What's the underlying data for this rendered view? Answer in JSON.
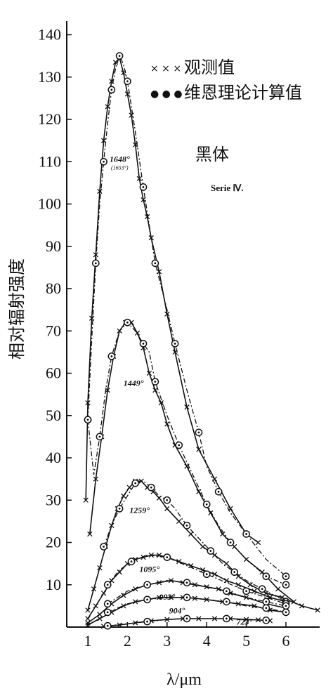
{
  "chart_data": {
    "type": "line",
    "title": "",
    "xlabel": "λ/μm",
    "ylabel": "相对辐射强度",
    "xlim": [
      0.5,
      6.8
    ],
    "ylim": [
      0,
      145
    ],
    "xticks": [
      1,
      2,
      3,
      4,
      5,
      6
    ],
    "yticks": [
      10,
      20,
      30,
      40,
      50,
      60,
      70,
      80,
      90,
      100,
      110,
      120,
      130,
      140
    ],
    "legend": {
      "placement": "top-right",
      "entries": [
        {
          "marker": "× × ×",
          "label": "观测值"
        },
        {
          "marker": "● ● ●",
          "label": "维恩理论计算值"
        }
      ]
    },
    "annotations": [
      {
        "text": "黑体",
        "style": "large"
      },
      {
        "text": "Serie Ⅳ.",
        "style": "small"
      }
    ],
    "series": [
      {
        "name": "1648°",
        "sublabel": "(1653°)",
        "observed": {
          "x": [
            0.95,
            1.0,
            1.1,
            1.2,
            1.3,
            1.4,
            1.5,
            1.6,
            1.7,
            1.8,
            1.9,
            2.0,
            2.1,
            2.2,
            2.3,
            2.4,
            2.5,
            2.6,
            2.8,
            3.0,
            3.2,
            3.5,
            3.8,
            4.2,
            4.6,
            5.0,
            5.3
          ],
          "y": [
            30,
            53,
            73,
            88,
            103,
            115,
            123,
            129,
            133.5,
            134.5,
            131,
            126,
            121,
            114,
            106,
            101,
            97,
            92,
            84,
            74,
            65,
            52,
            42,
            35,
            28,
            22,
            20
          ]
        },
        "theory": {
          "x": [
            1.0,
            1.1,
            1.2,
            1.3,
            1.4,
            1.5,
            1.6,
            1.7,
            1.8,
            1.9,
            2.0,
            2.2,
            2.4,
            2.5,
            2.7,
            3.0,
            3.2,
            3.5,
            3.8,
            4.0,
            4.3,
            4.6,
            5.0,
            5.5,
            6.0
          ],
          "y": [
            49,
            68,
            86,
            100,
            110,
            119,
            127,
            132,
            135,
            133,
            129,
            117,
            104,
            98,
            86,
            75,
            67,
            56,
            46,
            38,
            32,
            27,
            22,
            16,
            12
          ]
        }
      },
      {
        "name": "1449°",
        "observed": {
          "x": [
            1.05,
            1.2,
            1.35,
            1.5,
            1.65,
            1.8,
            1.95,
            2.1,
            2.25,
            2.4,
            2.55,
            2.7,
            2.85,
            3.0,
            3.2,
            3.5,
            3.8,
            4.1,
            4.4,
            4.7,
            5.0,
            5.4,
            5.8,
            6.2
          ],
          "y": [
            22,
            35,
            45,
            56,
            64,
            70,
            72,
            72,
            69.5,
            66,
            60,
            56,
            53,
            48,
            43,
            38,
            32,
            27,
            22,
            19,
            16,
            13,
            9,
            6
          ]
        },
        "theory": {
          "x": [
            1.0,
            1.15,
            1.3,
            1.45,
            1.6,
            1.8,
            2.0,
            2.2,
            2.4,
            2.55,
            2.7,
            3.0,
            3.3,
            3.6,
            4.0,
            4.3,
            4.6,
            5.0,
            5.5,
            6.0
          ],
          "y": [
            49,
            36,
            45,
            56,
            64,
            70,
            72,
            70,
            67,
            65,
            58,
            50,
            43,
            37,
            29,
            24,
            20,
            16,
            12,
            10
          ]
        }
      },
      {
        "name": "1259°",
        "observed": {
          "x": [
            1.0,
            1.15,
            1.3,
            1.45,
            1.6,
            1.75,
            1.9,
            2.05,
            2.2,
            2.35,
            2.5,
            2.65,
            2.8,
            3.0,
            3.3,
            3.6,
            3.9,
            4.2,
            4.5,
            4.8,
            5.1,
            5.5,
            5.9,
            6.4,
            6.8
          ],
          "y": [
            4,
            9,
            14,
            19,
            24,
            28,
            31,
            33,
            34.5,
            34.5,
            33,
            32,
            30.5,
            28,
            25,
            22,
            19,
            17,
            15,
            12,
            10,
            8,
            7,
            5,
            4
          ]
        },
        "theory": {
          "x": [
            1.4,
            1.6,
            1.8,
            2.0,
            2.2,
            2.4,
            2.6,
            2.8,
            3.0,
            3.2,
            3.5,
            3.8,
            4.1,
            4.4,
            4.7,
            5.0,
            5.4,
            5.8,
            6.0
          ],
          "y": [
            19,
            24,
            28,
            31,
            34,
            34.5,
            33,
            31,
            30,
            28,
            24,
            21,
            18,
            15,
            13,
            11,
            9,
            7,
            6
          ]
        }
      },
      {
        "name": "1095°",
        "observed": {
          "x": [
            1.0,
            1.2,
            1.4,
            1.6,
            1.8,
            2.0,
            2.2,
            2.4,
            2.6,
            2.8,
            3.0,
            3.3,
            3.6,
            3.9,
            4.2,
            4.5,
            4.8,
            5.2,
            5.6,
            6.0
          ],
          "y": [
            2,
            5,
            8,
            11,
            13,
            15,
            16,
            16.5,
            17,
            17,
            16.5,
            15.5,
            14.5,
            13.5,
            12.5,
            11,
            10,
            8.5,
            7,
            6
          ]
        },
        "theory": {
          "x": [
            1.5,
            1.8,
            2.1,
            2.5,
            3.0,
            3.5,
            4.0,
            4.5,
            5.0,
            5.5,
            6.0
          ],
          "y": [
            10,
            13.5,
            15.5,
            17,
            16.5,
            14.5,
            12.5,
            10.5,
            8.5,
            7,
            5.5
          ]
        }
      },
      {
        "name": "993°",
        "observed": {
          "x": [
            1.0,
            1.3,
            1.6,
            1.9,
            2.2,
            2.5,
            2.8,
            3.1,
            3.4,
            3.7,
            4.0,
            4.3,
            4.6,
            5.0,
            5.5,
            6.0
          ],
          "y": [
            1,
            3,
            5.5,
            7.5,
            9,
            10,
            10.5,
            11,
            10.5,
            10,
            9.5,
            9,
            8,
            7,
            5.5,
            4.5
          ]
        },
        "theory": {
          "x": [
            1.5,
            2.0,
            2.5,
            3.0,
            3.5,
            4.0,
            4.5,
            5.0,
            5.5,
            6.0
          ],
          "y": [
            5.5,
            8.5,
            10,
            11,
            10.5,
            9.5,
            8.5,
            7,
            6,
            5
          ]
        }
      },
      {
        "name": "904°",
        "observed": {
          "x": [
            1.0,
            1.3,
            1.6,
            1.9,
            2.2,
            2.5,
            2.8,
            3.1,
            3.4,
            3.7,
            4.0,
            4.4,
            4.8,
            5.2,
            5.6,
            6.0
          ],
          "y": [
            0.5,
            2,
            3.5,
            5,
            6,
            6.5,
            7,
            7,
            7,
            6.8,
            6.5,
            6,
            5.5,
            5,
            4,
            3.5
          ]
        },
        "theory": {
          "x": [
            1.5,
            2.0,
            2.5,
            3.0,
            3.5,
            4.0,
            4.5,
            5.0,
            5.5,
            6.0
          ],
          "y": [
            3.5,
            5.5,
            6.5,
            7,
            7,
            6.5,
            6,
            5,
            4.5,
            3.5
          ]
        }
      },
      {
        "name": "723°",
        "observed": {
          "x": [
            1.4,
            1.8,
            2.2,
            2.6,
            3.0,
            3.4,
            3.8,
            4.2,
            4.6,
            5.0,
            5.3,
            5.6
          ],
          "y": [
            0.2,
            0.5,
            1,
            1.5,
            1.8,
            2,
            2,
            2,
            2,
            1.8,
            1.7,
            1.5
          ]
        },
        "theory": {
          "x": [
            1.5,
            2.0,
            2.5,
            3.0,
            3.5,
            4.0,
            4.5,
            5.0,
            5.5
          ],
          "y": [
            0.3,
            0.8,
            1.3,
            1.8,
            2,
            2,
            2,
            1.8,
            1.6
          ]
        }
      }
    ]
  }
}
